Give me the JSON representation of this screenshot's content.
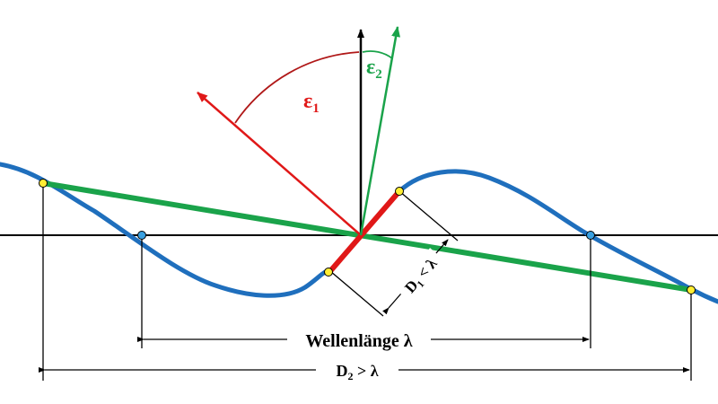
{
  "labels": {
    "epsilon1": {
      "base": "ε",
      "sub": "1"
    },
    "epsilon2": {
      "base": "ε",
      "sub": "2"
    },
    "wavelength": "Wellenlänge λ",
    "d1": {
      "base": "D",
      "sub": "1",
      "rest": " < λ"
    },
    "d2": {
      "base": "D",
      "sub": "2",
      "rest": " > λ"
    }
  },
  "colors": {
    "wave": "#1f6fbd",
    "green": "#1aa34a",
    "red": "#e01818",
    "arc": "#b01818",
    "axis": "#000000",
    "point_yellow": "#ffee33",
    "point_blue": "#3aa0e0"
  },
  "icons": {
    "arrow": "arrowhead"
  }
}
